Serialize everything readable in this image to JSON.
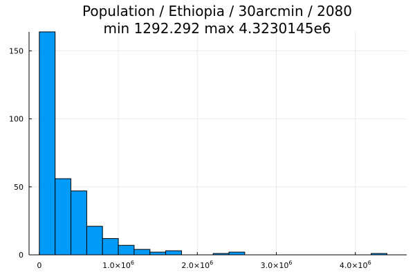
{
  "chart_data": {
    "type": "bar",
    "title": "Population / Ethiopia / 30arcmin / 2080",
    "subtitle": "min 1292.292  max 4.3230145e6",
    "xlabel": "",
    "ylabel": "",
    "bin_width": 200000,
    "bins": [
      {
        "start": 0,
        "end": 200000,
        "count": 164
      },
      {
        "start": 200000,
        "end": 400000,
        "count": 56
      },
      {
        "start": 400000,
        "end": 600000,
        "count": 47
      },
      {
        "start": 600000,
        "end": 800000,
        "count": 21
      },
      {
        "start": 800000,
        "end": 1000000,
        "count": 12
      },
      {
        "start": 1000000,
        "end": 1200000,
        "count": 7
      },
      {
        "start": 1200000,
        "end": 1400000,
        "count": 4
      },
      {
        "start": 1400000,
        "end": 1600000,
        "count": 2
      },
      {
        "start": 1600000,
        "end": 1800000,
        "count": 3
      },
      {
        "start": 2200000,
        "end": 2400000,
        "count": 1
      },
      {
        "start": 2400000,
        "end": 2600000,
        "count": 2
      },
      {
        "start": 4200000,
        "end": 4400000,
        "count": 1
      }
    ],
    "xlim": [
      -130000,
      4650000
    ],
    "ylim": [
      0,
      164
    ],
    "x_ticks": [
      {
        "value": 0,
        "mantissa": "0",
        "exponent": ""
      },
      {
        "value": 1000000,
        "mantissa": "1.0×10",
        "exponent": "6"
      },
      {
        "value": 2000000,
        "mantissa": "2.0×10",
        "exponent": "6"
      },
      {
        "value": 3000000,
        "mantissa": "3.0×10",
        "exponent": "6"
      },
      {
        "value": 4000000,
        "mantissa": "4.0×10",
        "exponent": "6"
      }
    ],
    "y_ticks": [
      {
        "value": 0,
        "label": "0"
      },
      {
        "value": 50,
        "label": "50"
      },
      {
        "value": 100,
        "label": "100"
      },
      {
        "value": 150,
        "label": "150"
      }
    ],
    "grid": true,
    "legend": false,
    "bar_color": "#009AF9",
    "edge_color": "#000000"
  }
}
